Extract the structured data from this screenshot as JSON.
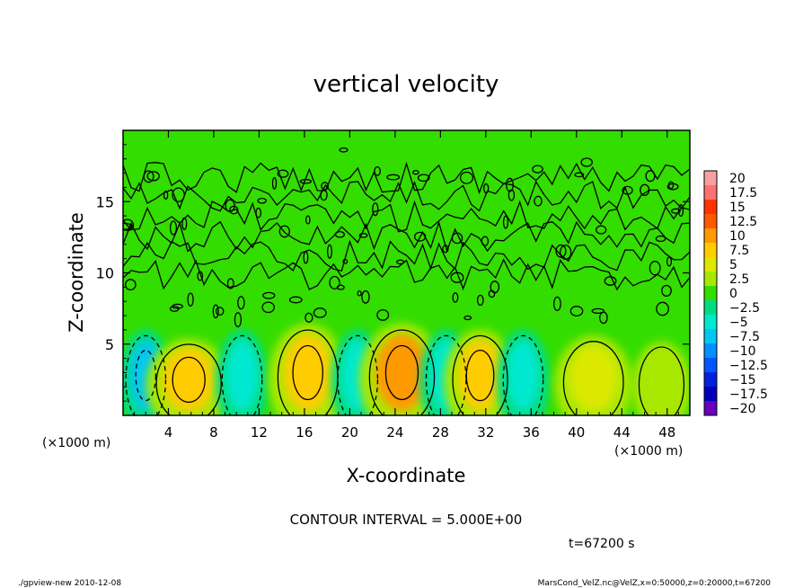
{
  "chart_data": {
    "type": "heatmap",
    "title": "vertical velocity",
    "xlabel": "X-coordinate",
    "ylabel": "Z-coordinate",
    "x_unit_left": "(×1000 m)",
    "x_unit_right": "(×1000 m)",
    "xlim": [
      0,
      50
    ],
    "ylim": [
      0,
      20
    ],
    "x_ticks": [
      4,
      8,
      12,
      16,
      20,
      24,
      28,
      32,
      36,
      40,
      44,
      48
    ],
    "y_ticks": [
      5,
      10,
      15
    ],
    "colorbar": {
      "levels": [
        20,
        17.5,
        15,
        12.5,
        10,
        7.5,
        5,
        2.5,
        0,
        -2.5,
        -5,
        -7.5,
        -10,
        -12.5,
        -15,
        -17.5,
        -20
      ],
      "level_labels": [
        "20",
        "17.5",
        "15",
        "12.5",
        "10",
        "7.5",
        "5",
        "2.5",
        "0",
        "−2.5",
        "−5",
        "−7.5",
        "−10",
        "−12.5",
        "−15",
        "−17.5",
        "−20"
      ],
      "colors": [
        "#f8a0a0",
        "#ff7070",
        "#ff3300",
        "#ff5a00",
        "#ff9900",
        "#ffcc00",
        "#dde800",
        "#a8e800",
        "#33dd00",
        "#00dd80",
        "#00e8d0",
        "#00c8f0",
        "#0090ff",
        "#0055ff",
        "#0022dd",
        "#0000bb",
        "#6600bb"
      ]
    },
    "cells": [
      {
        "x": 2.0,
        "z": 2.8,
        "w": 1.6,
        "v": -7.5
      },
      {
        "x": 5.8,
        "z": 2.5,
        "w": 2.6,
        "v": 7.5
      },
      {
        "x": 10.5,
        "z": 2.8,
        "w": 1.6,
        "v": -5
      },
      {
        "x": 16.3,
        "z": 3.0,
        "w": 2.4,
        "v": 7.5
      },
      {
        "x": 20.7,
        "z": 2.8,
        "w": 1.6,
        "v": -5
      },
      {
        "x": 24.6,
        "z": 3.0,
        "w": 2.6,
        "v": 10
      },
      {
        "x": 28.5,
        "z": 2.8,
        "w": 1.6,
        "v": -5
      },
      {
        "x": 31.5,
        "z": 2.8,
        "w": 2.2,
        "v": 7.5
      },
      {
        "x": 35.3,
        "z": 2.8,
        "w": 1.6,
        "v": -5
      },
      {
        "x": 41.5,
        "z": 2.6,
        "w": 2.4,
        "v": 5
      },
      {
        "x": 47.5,
        "z": 2.4,
        "w": 1.8,
        "v": 2.5
      }
    ],
    "contour_interval_text": "CONTOUR INTERVAL = 5.000E+00",
    "time_text": "t=67200 s",
    "footer_left": "./gpview-new  2010-12-08",
    "footer_right": "MarsCond_VelZ.nc@VelZ,x=0:50000,z=0:20000,t=67200"
  }
}
